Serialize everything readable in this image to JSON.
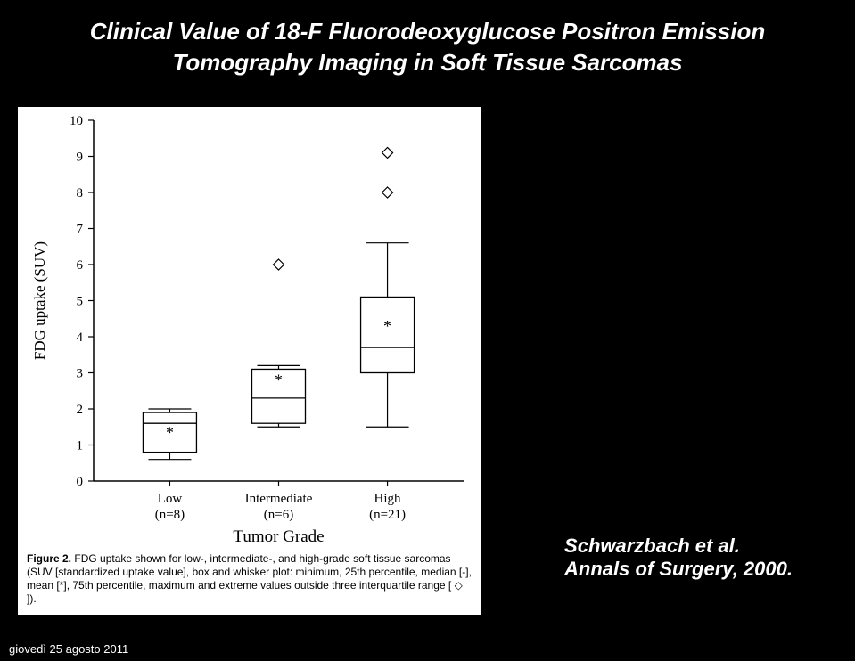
{
  "title": {
    "line1": "Clinical Value of 18-F Fluorodeoxyglucose Positron Emission",
    "line2": "Tomography Imaging in Soft Tissue Sarcomas"
  },
  "footer_date": "giovedì 25 agosto 2011",
  "reference": {
    "author": "Schwarzbach et al.",
    "journal": "Annals of Surgery, 2000."
  },
  "figure_caption": {
    "lead": "Figure 2.",
    "body": "FDG uptake shown for low-, intermediate-, and high-grade soft tissue sarcomas (SUV [standardized uptake value], box and whisker plot: minimum, 25th percentile, median [-], mean [*], 75th percentile, maximum and extreme values outside three interquartile range [ ◇ ])."
  },
  "chart": {
    "type": "boxplot",
    "ylabel": "FDG uptake (SUV)",
    "xlabel": "Tumor Grade",
    "ylim": [
      0,
      10
    ],
    "yticks": [
      0,
      1,
      2,
      3,
      4,
      5,
      6,
      7,
      8,
      9,
      10
    ],
    "background_color": "#ffffff",
    "axis_color": "#000000",
    "line_color": "#000000",
    "tick_fontsize": 15,
    "label_fontsize": 17,
    "xlabel_fontsize": 19,
    "box_width": 0.5,
    "categories": [
      {
        "label": "Low",
        "sub": "(n=8)",
        "min": 0.6,
        "q1": 0.8,
        "median": 1.6,
        "mean": 1.35,
        "q3": 1.9,
        "max": 2.0,
        "outliers": []
      },
      {
        "label": "Intermediate",
        "sub": "(n=6)",
        "min": 1.5,
        "q1": 1.6,
        "median": 2.3,
        "mean": 2.8,
        "q3": 3.1,
        "max": 3.2,
        "outliers": [
          6.0
        ]
      },
      {
        "label": "High",
        "sub": "(n=21)",
        "min": 1.5,
        "q1": 3.0,
        "median": 3.7,
        "mean": 4.3,
        "q3": 5.1,
        "max": 6.6,
        "outliers": [
          8.0,
          9.1
        ]
      }
    ]
  }
}
